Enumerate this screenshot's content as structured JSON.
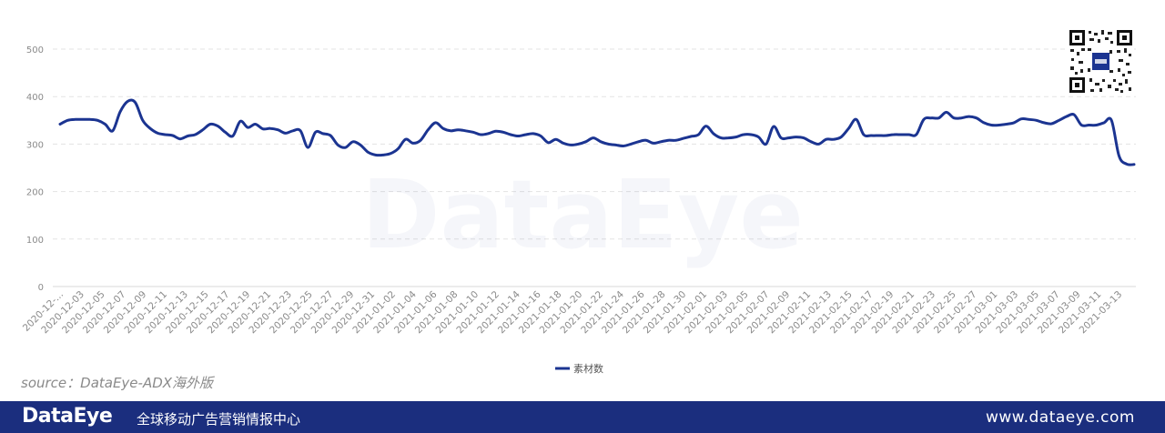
{
  "chart_data": {
    "type": "line",
    "title": "",
    "xlabel": "",
    "ylabel": "",
    "ylim": [
      0,
      500
    ],
    "yticks": [
      0,
      100,
      200,
      300,
      400,
      500
    ],
    "grid": true,
    "legend_position": "bottom-center",
    "watermark": "DataEye",
    "line_color": "#1b3491",
    "x_tick_labels": [
      "2020-12-...",
      "2020-12-03",
      "2020-12-05",
      "2020-12-07",
      "2020-12-09",
      "2020-12-11",
      "2020-12-13",
      "2020-12-15",
      "2020-12-17",
      "2020-12-19",
      "2020-12-21",
      "2020-12-23",
      "2020-12-25",
      "2020-12-27",
      "2020-12-29",
      "2020-12-31",
      "2021-01-02",
      "2021-01-04",
      "2021-01-06",
      "2021-01-08",
      "2021-01-10",
      "2021-01-12",
      "2021-01-14",
      "2021-01-16",
      "2021-01-18",
      "2021-01-20",
      "2021-01-22",
      "2021-01-24",
      "2021-01-26",
      "2021-01-28",
      "2021-01-30",
      "2021-02-01",
      "2021-02-03",
      "2021-02-05",
      "2021-02-07",
      "2021-02-09",
      "2021-02-11",
      "2021-02-13",
      "2021-02-15",
      "2021-02-17",
      "2021-02-19",
      "2021-02-21",
      "2021-02-23",
      "2021-02-25",
      "2021-02-27",
      "2021-03-01",
      "2021-03-03",
      "2021-03-05",
      "2021-03-07",
      "2021-03-09",
      "2021-03-11",
      "2021-03-13"
    ],
    "series": [
      {
        "name": "素材数",
        "values": [
          342,
          350,
          352,
          352,
          352,
          350,
          342,
          328,
          368,
          390,
          388,
          350,
          333,
          323,
          320,
          318,
          311,
          317,
          320,
          330,
          342,
          338,
          325,
          317,
          348,
          335,
          342,
          332,
          333,
          330,
          323,
          328,
          328,
          293,
          325,
          322,
          318,
          298,
          293,
          305,
          298,
          283,
          277,
          277,
          280,
          290,
          310,
          302,
          308,
          330,
          345,
          333,
          328,
          330,
          328,
          325,
          320,
          322,
          327,
          325,
          320,
          317,
          320,
          322,
          317,
          303,
          310,
          302,
          298,
          300,
          305,
          313,
          305,
          300,
          298,
          296,
          300,
          305,
          308,
          302,
          305,
          308,
          308,
          312,
          316,
          320,
          338,
          322,
          313,
          313,
          315,
          320,
          320,
          315,
          300,
          337,
          313,
          313,
          315,
          313,
          305,
          300,
          310,
          310,
          315,
          333,
          352,
          320,
          318,
          318,
          318,
          320,
          320,
          320,
          320,
          352,
          355,
          355,
          367,
          355,
          355,
          358,
          355,
          345,
          340,
          340,
          342,
          345,
          353,
          352,
          350,
          345,
          343,
          350,
          358,
          362,
          340,
          340,
          340,
          345,
          350,
          275,
          258,
          257
        ]
      }
    ]
  },
  "source_note": "source：DataEye-ADX海外版",
  "footer": {
    "logo": "DataEye",
    "tagline": "全球移动广告营销情报中心",
    "url": "www.dataeye.com"
  },
  "colors": {
    "footer_bg": "#1b2e7e",
    "line": "#1b3491",
    "grid": "#e5e5e5",
    "axis_text": "#8a8a8a"
  }
}
